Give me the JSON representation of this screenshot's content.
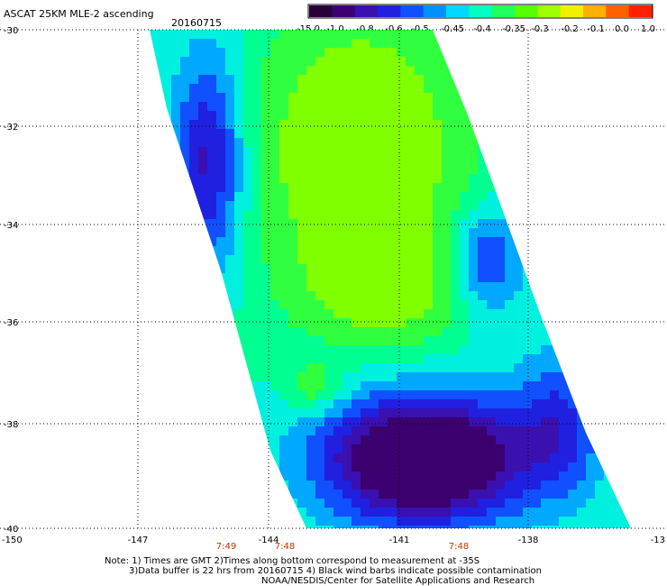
{
  "header": {
    "title": "ASCAT 25KM MLE-2 ascending",
    "date": "20160715"
  },
  "colorbar": {
    "labels": [
      "-15.0",
      "-1.0",
      "-0.8",
      "-0.6",
      "-0.5",
      "-0.45",
      "-0.4",
      "-0.35",
      "-0.3",
      "-0.2",
      "-0.1",
      "0.0",
      "1.0"
    ],
    "colors": [
      "#2a003a",
      "#3c0070",
      "#3a10b0",
      "#2020e0",
      "#1050ff",
      "#0090ff",
      "#00d8ff",
      "#00ffc0",
      "#20ff60",
      "#58ff00",
      "#a0ff00",
      "#f0f000",
      "#ffb000",
      "#ff6000",
      "#ff2000"
    ]
  },
  "map": {
    "lat_ticks": [
      "-30",
      "-32",
      "-34",
      "-36",
      "-38",
      "-40"
    ],
    "lon_ticks": [
      "-150",
      "-147",
      "-144",
      "-141",
      "-138",
      "-13"
    ],
    "time_labels": [
      "7:49",
      "7:48",
      "7:48"
    ]
  },
  "notes": {
    "line1": "Note: 1) Times are GMT 2)Times along bottom correspond to measurement at -35S",
    "line2": "3)Data buffer is 22 hrs from 20160715 4) Black wind barbs indicate possible contamination",
    "line3": "NOAA/NESDIS/Center for Satellite Applications and Research"
  }
}
